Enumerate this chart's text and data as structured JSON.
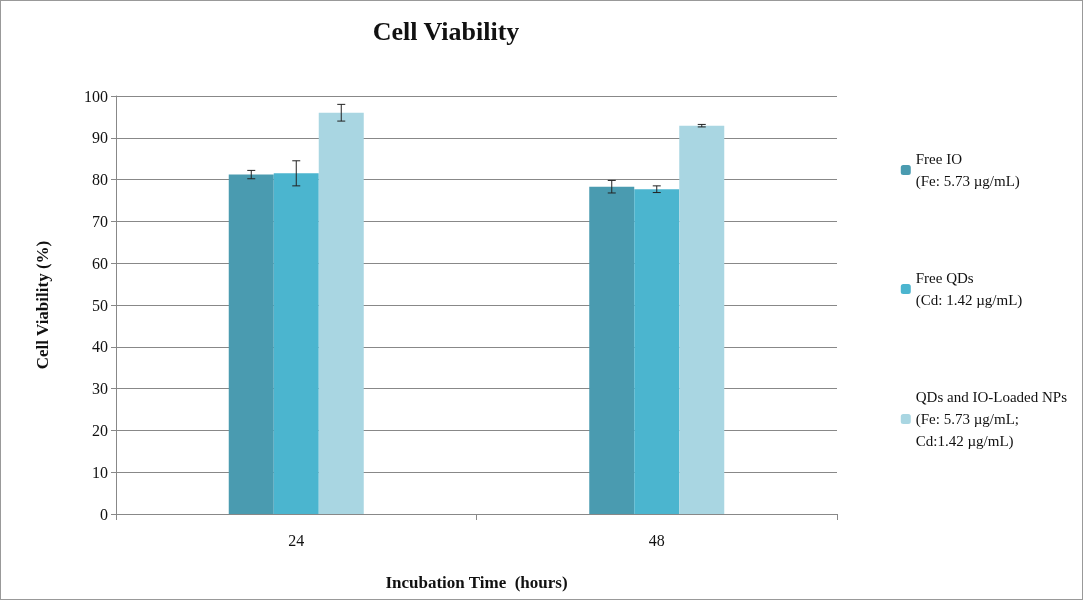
{
  "chart_data": {
    "type": "bar",
    "title": "Cell Viability",
    "xlabel": "Incubation Time  (hours)",
    "ylabel": "Cell Viability (%)",
    "categories": [
      "24",
      "48"
    ],
    "series": [
      {
        "name": "Free IO\n(Fe: 5.73 µg/mL)",
        "color": "#4a9bb0",
        "values": [
          81.2,
          78.3
        ],
        "errors": [
          1,
          1.5
        ]
      },
      {
        "name": "Free QDs\n(Cd: 1.42 µg/mL)",
        "color": "#4bb5cf",
        "values": [
          81.5,
          77.7
        ],
        "errors": [
          3,
          0.8
        ]
      },
      {
        "name": "QDs and IO-Loaded NPs\n(Fe: 5.73 µg/mL;\nCd:1.42 µg/mL)",
        "color": "#a9d6e2",
        "values": [
          96,
          92.9
        ],
        "errors": [
          2,
          0.3
        ]
      }
    ],
    "ylim": [
      0,
      100
    ],
    "yticks": [
      0,
      10,
      20,
      30,
      40,
      50,
      60,
      70,
      80,
      90,
      100
    ],
    "grid": "y",
    "legend": "right"
  }
}
